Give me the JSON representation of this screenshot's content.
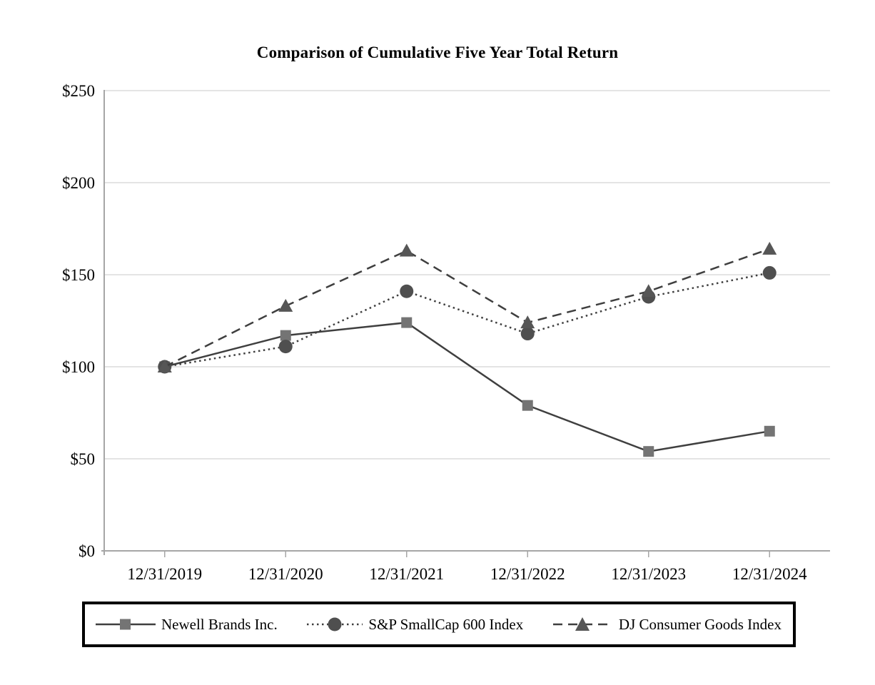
{
  "chart": {
    "title": "Comparison of Cumulative Five Year Total Return"
  },
  "chart_data": {
    "type": "line",
    "title": "Comparison of Cumulative Five Year Total Return",
    "categories": [
      "12/31/2019",
      "12/31/2020",
      "12/31/2021",
      "12/31/2022",
      "12/31/2023",
      "12/31/2024"
    ],
    "series": [
      {
        "name": "Newell Brands Inc.",
        "marker": "square",
        "line_style": "solid",
        "values": [
          100,
          117,
          124,
          79,
          54,
          65
        ]
      },
      {
        "name": "S&P SmallCap 600 Index",
        "marker": "circle",
        "line_style": "dotted",
        "values": [
          100,
          111,
          141,
          118,
          138,
          151
        ]
      },
      {
        "name": "DJ Consumer Goods Index",
        "marker": "triangle",
        "line_style": "dashed",
        "values": [
          100,
          133,
          163,
          124,
          141,
          164
        ]
      }
    ],
    "xlabel": "",
    "ylabel": "",
    "ylim": [
      0,
      250
    ],
    "y_tick_values": [
      0,
      50,
      100,
      150,
      200,
      250
    ],
    "y_tick_labels": [
      "$0",
      "$50",
      "$100",
      "$150",
      "$200",
      "$250"
    ],
    "grid": "horizontal",
    "legend_position": "bottom-boxed",
    "colors": {
      "line": "#3f3f3f",
      "square_marker": "#747474",
      "circle_marker": "#4f4f4f",
      "triangle_marker": "#565656",
      "gridline": "#dcdcdc",
      "axis": "#a6a6a6",
      "text": "#000000",
      "background": "#ffffff"
    }
  }
}
